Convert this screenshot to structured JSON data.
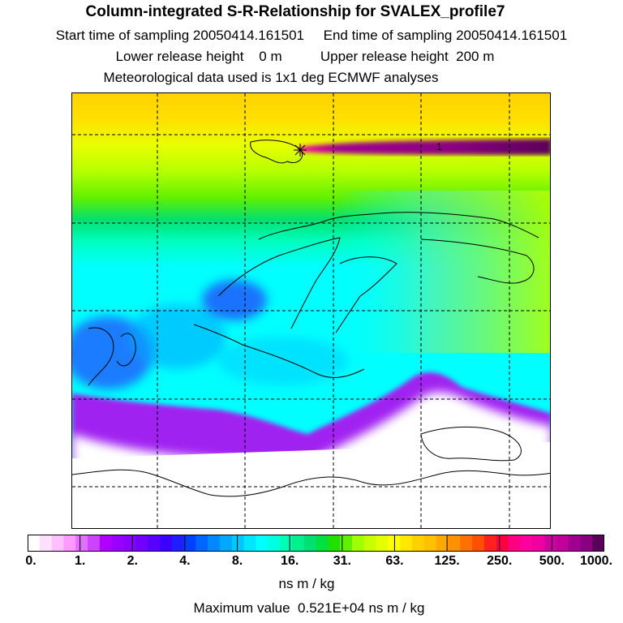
{
  "header": {
    "title": "Column-integrated S-R-Relationship for SVALEX_profile7",
    "sampling_line": "Start time of sampling 20050414.161501     End time of sampling 20050414.161501",
    "release_line": "Lower release height    0 m          Upper release height  200 m",
    "met_line": "Meteorological data used is 1x1 deg ECMWF analyses"
  },
  "map": {
    "release_marker_label": "1",
    "palette": {
      "white": "#ffffff",
      "purple": "#a020f0",
      "blue": "#1e64ff",
      "cyan": "#00ffff",
      "green": "#00e070",
      "yellow": "#e6ff00",
      "orange": "#ffc800",
      "magenta": "#8b0080"
    }
  },
  "colorbar": {
    "ticks": [
      "0.",
      "1.",
      "2.",
      "4.",
      "8.",
      "16.",
      "31.",
      "63.",
      "125.",
      "250.",
      "500.",
      "1000."
    ],
    "colors": [
      "#ffffff",
      "#ffe0ff",
      "#ffc0ff",
      "#ff99ff",
      "#e070ff",
      "#cc44ff",
      "#b000ff",
      "#9900ff",
      "#8a00ff",
      "#7000ff",
      "#5a00ff",
      "#3c00ff",
      "#1e1eff",
      "#0040ff",
      "#0066ff",
      "#0088ff",
      "#00a8ff",
      "#00c8ff",
      "#00e6ff",
      "#00ffff",
      "#00ffe0",
      "#00ffb0",
      "#00f090",
      "#00e070",
      "#00e040",
      "#20e000",
      "#60f000",
      "#a0ff00",
      "#c8ff00",
      "#e6ff00",
      "#ffff00",
      "#ffe800",
      "#ffd000",
      "#ffc000",
      "#ffa800",
      "#ff9000",
      "#ff7000",
      "#ff5000",
      "#ff2020",
      "#ff0040",
      "#ff0080",
      "#ff00a0",
      "#f000a0",
      "#d000a0",
      "#c00098",
      "#a00090",
      "#8b0080",
      "#5a005a"
    ]
  },
  "units": "ns m / kg",
  "max_value": "Maximum value  0.521E+04 ns m / kg"
}
